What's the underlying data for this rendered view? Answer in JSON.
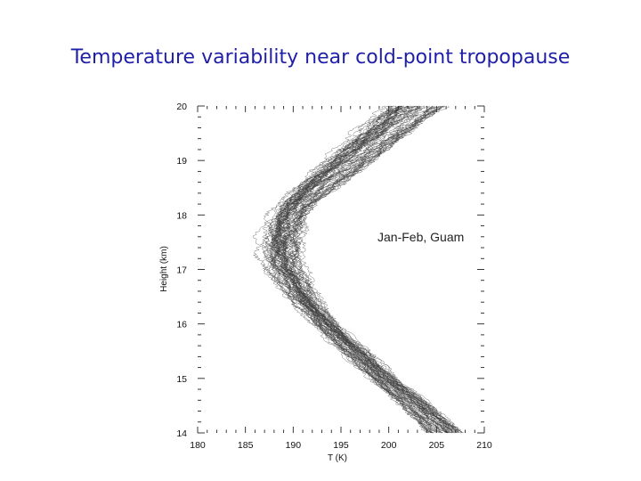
{
  "slide": {
    "title": "Temperature variability near cold-point tropopause"
  },
  "chart_data": {
    "type": "line",
    "xlabel": "T (K)",
    "ylabel": "Height (km)",
    "xlim": [
      180,
      210
    ],
    "ylim": [
      14,
      20
    ],
    "xticks": [
      180,
      185,
      190,
      195,
      200,
      205,
      210
    ],
    "yticks": [
      14,
      15,
      16,
      17,
      18,
      19,
      20
    ],
    "annotation": "Jan-Feb, Guam",
    "grid": false,
    "line_color": "#3a3a3a",
    "profile_count": 60,
    "mean_profile": {
      "height_km": [
        14.0,
        14.5,
        15.0,
        15.5,
        16.0,
        16.5,
        16.8,
        17.0,
        17.3,
        17.6,
        17.9,
        18.2,
        18.5,
        19.0,
        19.5,
        20.0
      ],
      "temperature_K": [
        206.0,
        203.0,
        199.5,
        196.5,
        193.5,
        191.0,
        190.0,
        189.3,
        189.0,
        189.0,
        189.5,
        190.5,
        192.5,
        196.0,
        199.5,
        203.0
      ]
    },
    "spread_K": {
      "height_km": [
        14.0,
        15.0,
        16.0,
        16.5,
        17.0,
        17.5,
        18.0,
        18.5,
        19.0,
        20.0
      ],
      "half_width": [
        1.8,
        1.6,
        1.6,
        2.0,
        2.4,
        2.6,
        2.4,
        2.6,
        3.0,
        3.2
      ]
    }
  }
}
